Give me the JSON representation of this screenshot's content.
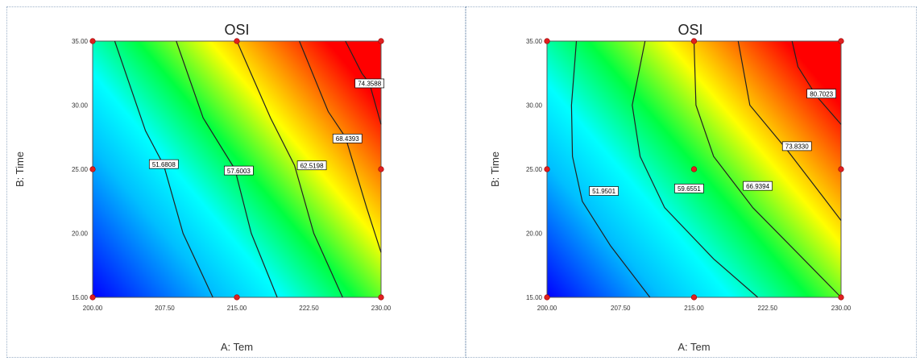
{
  "chart_data": [
    {
      "type": "heatmap",
      "title": "OSI",
      "xlabel": "A: Tem",
      "ylabel": "B: Time",
      "xlim": [
        200,
        230
      ],
      "ylim": [
        15,
        35
      ],
      "xticks": [
        "200.00",
        "207.50",
        "215.00",
        "222.50",
        "230.00"
      ],
      "yticks": [
        "15.00",
        "20.00",
        "25.00",
        "30.00",
        "35.00"
      ],
      "colormap": [
        "#0000ff",
        "#00bfff",
        "#00ffff",
        "#00ff40",
        "#ffff00",
        "#ff8000",
        "#ff0000"
      ],
      "contours": [
        {
          "label": "51.6808",
          "points": [
            [
              202.3,
              35
            ],
            [
              205.5,
              28
            ],
            [
              207.4,
              25.3
            ],
            [
              209.4,
              20
            ],
            [
              212.5,
              15
            ]
          ]
        },
        {
          "label": "57.6003",
          "points": [
            [
              208.7,
              35
            ],
            [
              211.5,
              29
            ],
            [
              214.8,
              25
            ],
            [
              216.5,
              20
            ],
            [
              219.2,
              15
            ]
          ]
        },
        {
          "label": "62.5198",
          "points": [
            [
              215.0,
              35
            ],
            [
              218.5,
              29
            ],
            [
              221.0,
              25.3
            ],
            [
              223.0,
              20
            ],
            [
              226.0,
              15
            ]
          ]
        },
        {
          "label": "68.4393",
          "points": [
            [
              221.5,
              35
            ],
            [
              224.5,
              29.5
            ],
            [
              226.3,
              27.5
            ],
            [
              228.5,
              22
            ],
            [
              230,
              18.5
            ]
          ]
        },
        {
          "label": "74.3588",
          "points": [
            [
              226.3,
              35
            ],
            [
              228.0,
              32.5
            ],
            [
              228.8,
              31.7
            ],
            [
              230,
              28.5
            ]
          ]
        }
      ],
      "label_positions": [
        [
          207.4,
          25.4
        ],
        [
          215.2,
          24.9
        ],
        [
          222.8,
          25.3
        ],
        [
          226.5,
          27.4
        ],
        [
          228.8,
          31.7
        ]
      ],
      "design_points": [
        [
          200,
          35
        ],
        [
          215,
          35
        ],
        [
          230,
          35
        ],
        [
          200,
          25
        ],
        [
          230,
          25
        ],
        [
          200,
          15
        ],
        [
          215,
          15
        ],
        [
          230,
          15
        ]
      ]
    },
    {
      "type": "heatmap",
      "title": "OSI",
      "xlabel": "A: Tem",
      "ylabel": "B: Time",
      "xlim": [
        200,
        230
      ],
      "ylim": [
        15,
        35
      ],
      "xticks": [
        "200.00",
        "207.50",
        "215.00",
        "222.50",
        "230.00"
      ],
      "yticks": [
        "15.00",
        "20.00",
        "25.00",
        "30.00",
        "35.00"
      ],
      "colormap": [
        "#0000ff",
        "#00bfff",
        "#00ffff",
        "#00ff40",
        "#ffff00",
        "#ff8000",
        "#ff0000"
      ],
      "contours": [
        {
          "label": "51.9501",
          "points": [
            [
              203.0,
              35
            ],
            [
              202.5,
              30
            ],
            [
              202.6,
              26
            ],
            [
              203.6,
              22.5
            ],
            [
              206.5,
              19
            ],
            [
              210.5,
              15
            ]
          ]
        },
        {
          "label": "59.6551",
          "points": [
            [
              210.0,
              35
            ],
            [
              208.7,
              30
            ],
            [
              209.5,
              26
            ],
            [
              212.0,
              22
            ],
            [
              217.0,
              18
            ],
            [
              221.5,
              15
            ]
          ]
        },
        {
          "label": "66.9394",
          "points": [
            [
              215.0,
              35
            ],
            [
              215.2,
              30
            ],
            [
              217.0,
              26
            ],
            [
              221.0,
              22
            ],
            [
              225.5,
              18.5
            ],
            [
              230,
              15
            ]
          ]
        },
        {
          "label": "73.8330",
          "points": [
            [
              219.5,
              35
            ],
            [
              220.7,
              30
            ],
            [
              224.5,
              26.5
            ],
            [
              228.0,
              23
            ],
            [
              230,
              21
            ]
          ]
        },
        {
          "label": "80.7023",
          "points": [
            [
              225.0,
              35
            ],
            [
              225.6,
              33
            ],
            [
              227.5,
              30.7
            ],
            [
              230,
              28.5
            ]
          ]
        }
      ],
      "label_positions": [
        [
          205.8,
          23.3
        ],
        [
          214.5,
          23.5
        ],
        [
          221.5,
          23.7
        ],
        [
          225.5,
          26.8
        ],
        [
          228.0,
          30.9
        ]
      ],
      "design_points": [
        [
          200,
          35
        ],
        [
          215,
          35
        ],
        [
          230,
          35
        ],
        [
          200,
          25
        ],
        [
          215,
          25
        ],
        [
          230,
          25
        ],
        [
          200,
          15
        ],
        [
          215,
          15
        ],
        [
          230,
          15
        ]
      ]
    }
  ]
}
